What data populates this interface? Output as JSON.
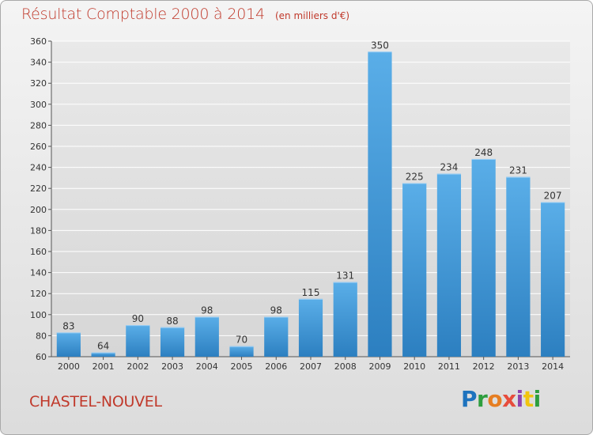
{
  "header": {
    "title": "Résultat Comptable 2000 à 2014",
    "unit": "(en milliers d'€)"
  },
  "footer": {
    "commune": "CHASTEL-NOUVEL",
    "logo": "Proxiti"
  },
  "colors": {
    "bar_light": "#5aaee8",
    "bar_dark": "#2c7fc0",
    "title": "#c0392b",
    "grid": "#ffffff"
  },
  "chart_data": {
    "type": "bar",
    "title": "Résultat Comptable 2000 à 2014",
    "unit_label": "(en milliers d'€)",
    "categories": [
      "2000",
      "2001",
      "2002",
      "2003",
      "2004",
      "2005",
      "2006",
      "2007",
      "2008",
      "2009",
      "2010",
      "2011",
      "2012",
      "2013",
      "2014"
    ],
    "values": [
      83,
      64,
      90,
      88,
      98,
      70,
      98,
      115,
      131,
      350,
      225,
      234,
      248,
      231,
      207
    ],
    "ylim": [
      60,
      360
    ],
    "yticks": [
      60,
      80,
      100,
      120,
      140,
      160,
      180,
      200,
      220,
      240,
      260,
      280,
      300,
      320,
      340,
      360
    ],
    "grid": true,
    "data_labels": true
  }
}
